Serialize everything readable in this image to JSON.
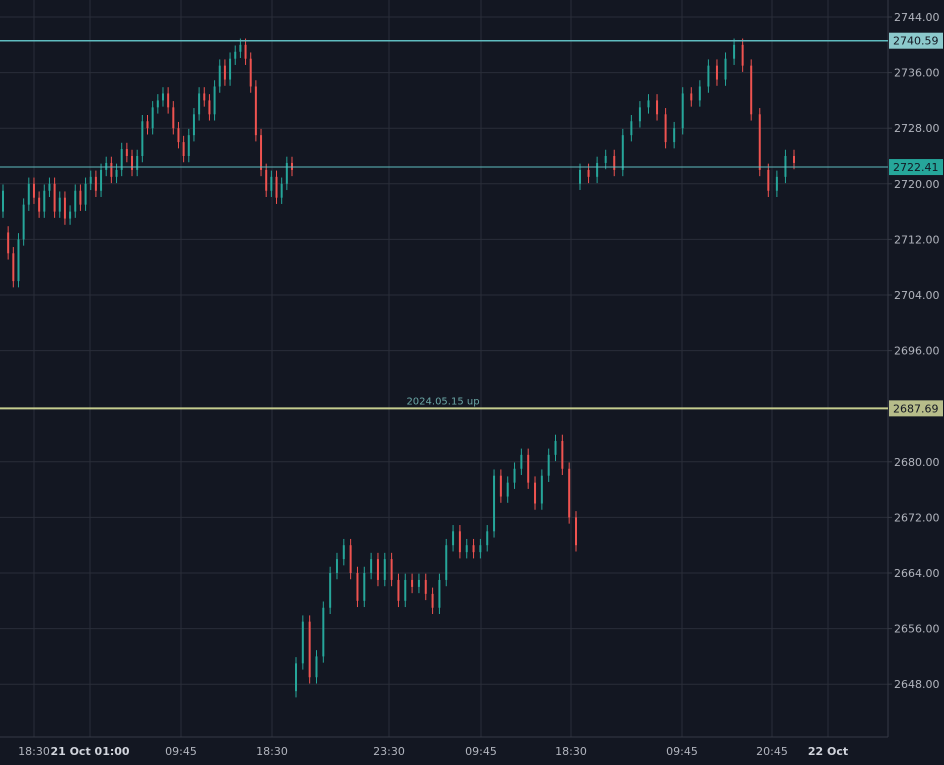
{
  "colors": {
    "background": "#131722",
    "grid": "#2a2e39",
    "axis_text": "#b2b5be",
    "up": "#26a69a",
    "down": "#ef5350",
    "level_teal": "#5fbcc0",
    "level_teal_label": "#8cc9cc",
    "level_active_label": "#26a69a",
    "level_olive": "#c5cc8f",
    "level_olive_label": "#b7bd8a",
    "annotation": "#6ba7a6"
  },
  "y_axis": {
    "ticks": [
      "2744.00",
      "2736.00",
      "2728.00",
      "2720.00",
      "2712.00",
      "2704.00",
      "2696.00",
      "2680.00",
      "2672.00",
      "2664.00",
      "2656.00",
      "2648.00"
    ]
  },
  "x_axis": {
    "ticks": [
      {
        "label": "18:30",
        "bold": false
      },
      {
        "label": "21 Oct 01:00",
        "bold": true
      },
      {
        "label": "09:45",
        "bold": false
      },
      {
        "label": "18:30",
        "bold": false
      },
      {
        "label": "23:30",
        "bold": false
      },
      {
        "label": "09:45",
        "bold": false
      },
      {
        "label": "18:30",
        "bold": false
      },
      {
        "label": "09:45",
        "bold": false
      },
      {
        "label": "20:45",
        "bold": false
      },
      {
        "label": "22 Oct",
        "bold": true
      }
    ]
  },
  "levels": [
    {
      "label": "2740.59",
      "value": 2740.59
    },
    {
      "label": "2722.41",
      "value": 2722.41
    },
    {
      "label": "2687.69",
      "value": 2687.69
    }
  ],
  "annotation": {
    "text": "2024.05.15 up"
  },
  "chart_data": {
    "type": "candlestick",
    "ylim": [
      2638,
      2746
    ],
    "series": [
      {
        "points": [
          [
            2716,
            2719
          ],
          [
            2713,
            2710
          ],
          [
            2710,
            2706
          ],
          [
            2706,
            2712
          ],
          [
            2712,
            2717
          ],
          [
            2717,
            2720
          ],
          [
            2720,
            2718
          ],
          [
            2718,
            2716
          ],
          [
            2716,
            2719
          ],
          [
            2719,
            2720
          ],
          [
            2720,
            2716
          ],
          [
            2716,
            2718
          ],
          [
            2718,
            2715
          ],
          [
            2715,
            2716
          ],
          [
            2716,
            2719
          ],
          [
            2719,
            2717
          ],
          [
            2717,
            2720
          ],
          [
            2720,
            2721
          ],
          [
            2721,
            2719
          ],
          [
            2719,
            2722
          ],
          [
            2722,
            2723
          ],
          [
            2723,
            2721
          ],
          [
            2721,
            2722
          ],
          [
            2722,
            2725
          ],
          [
            2725,
            2724
          ],
          [
            2724,
            2722
          ],
          [
            2722,
            2724
          ],
          [
            2724,
            2729
          ],
          [
            2729,
            2728
          ],
          [
            2728,
            2731
          ],
          [
            2731,
            2732
          ],
          [
            2732,
            2733
          ],
          [
            2733,
            2731
          ],
          [
            2731,
            2728
          ],
          [
            2728,
            2726
          ],
          [
            2726,
            2724
          ],
          [
            2724,
            2727
          ],
          [
            2727,
            2730
          ],
          [
            2730,
            2733
          ],
          [
            2733,
            2732
          ],
          [
            2732,
            2730
          ],
          [
            2730,
            2734
          ],
          [
            2734,
            2737
          ],
          [
            2737,
            2735
          ],
          [
            2735,
            2738
          ],
          [
            2738,
            2739
          ],
          [
            2739,
            2740
          ],
          [
            2740,
            2738
          ],
          [
            2738,
            2734
          ],
          [
            2734,
            2727
          ],
          [
            2727,
            2722
          ],
          [
            2722,
            2719
          ],
          [
            2719,
            2721
          ],
          [
            2721,
            2718
          ],
          [
            2718,
            2720
          ],
          [
            2720,
            2723
          ],
          [
            2723,
            2722
          ]
        ]
      },
      {
        "points": [
          [
            2720,
            2722
          ],
          [
            2722,
            2721
          ],
          [
            2721,
            2723
          ],
          [
            2723,
            2724
          ],
          [
            2724,
            2722
          ],
          [
            2722,
            2727
          ],
          [
            2727,
            2729
          ],
          [
            2729,
            2731
          ],
          [
            2731,
            2732
          ],
          [
            2732,
            2730
          ],
          [
            2730,
            2726
          ],
          [
            2726,
            2728
          ],
          [
            2728,
            2733
          ],
          [
            2733,
            2732
          ],
          [
            2732,
            2734
          ],
          [
            2734,
            2737
          ],
          [
            2737,
            2735
          ],
          [
            2735,
            2738
          ],
          [
            2738,
            2740
          ],
          [
            2740,
            2737
          ],
          [
            2737,
            2730
          ],
          [
            2730,
            2722
          ],
          [
            2722,
            2719
          ],
          [
            2719,
            2721
          ],
          [
            2721,
            2724
          ],
          [
            2724,
            2723
          ]
        ]
      },
      {
        "points": [
          [
            2647,
            2651
          ],
          [
            2651,
            2657
          ],
          [
            2657,
            2649
          ],
          [
            2649,
            2652
          ],
          [
            2652,
            2659
          ],
          [
            2659,
            2664
          ],
          [
            2664,
            2666
          ],
          [
            2666,
            2668
          ],
          [
            2668,
            2664
          ],
          [
            2664,
            2660
          ],
          [
            2660,
            2664
          ],
          [
            2664,
            2666
          ],
          [
            2666,
            2663
          ],
          [
            2663,
            2666
          ],
          [
            2666,
            2663
          ],
          [
            2663,
            2660
          ],
          [
            2660,
            2663
          ],
          [
            2663,
            2662
          ],
          [
            2662,
            2663
          ],
          [
            2663,
            2661
          ],
          [
            2661,
            2659
          ],
          [
            2659,
            2663
          ],
          [
            2663,
            2668
          ],
          [
            2668,
            2670
          ],
          [
            2670,
            2667
          ],
          [
            2667,
            2668
          ],
          [
            2668,
            2667
          ],
          [
            2667,
            2668
          ],
          [
            2668,
            2670
          ],
          [
            2670,
            2678
          ],
          [
            2678,
            2675
          ],
          [
            2675,
            2677
          ],
          [
            2677,
            2679
          ],
          [
            2679,
            2681
          ],
          [
            2681,
            2677
          ],
          [
            2677,
            2674
          ],
          [
            2674,
            2678
          ],
          [
            2678,
            2681
          ],
          [
            2681,
            2683
          ],
          [
            2683,
            2679
          ],
          [
            2679,
            2672
          ],
          [
            2672,
            2668
          ]
        ]
      }
    ]
  }
}
